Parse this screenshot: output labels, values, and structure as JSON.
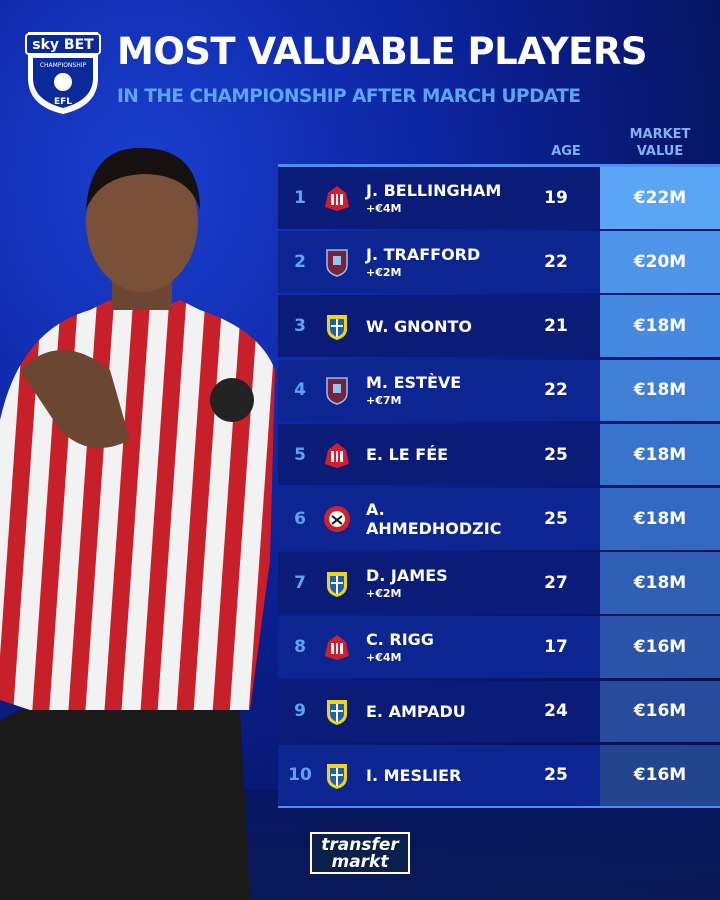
{
  "logo": {
    "line1": "sky BET",
    "line2": "CHAMPIONSHIP",
    "line3": "EFL"
  },
  "title": "MOST VALUABLE PLAYERS",
  "subtitle": "IN THE CHAMPIONSHIP AFTER MARCH UPDATE",
  "headers": {
    "age": "AGE",
    "market_value_1": "MARKET",
    "market_value_2": "VALUE"
  },
  "rows": [
    {
      "rank": "1",
      "club": "sunderland",
      "name": "J. BELLINGHAM",
      "change": "+€4M",
      "age": "19",
      "value": "€22M"
    },
    {
      "rank": "2",
      "club": "burnley",
      "name": "J. TRAFFORD",
      "change": "+€2M",
      "age": "22",
      "value": "€20M"
    },
    {
      "rank": "3",
      "club": "leeds",
      "name": "W. GNONTO",
      "change": "",
      "age": "21",
      "value": "€18M"
    },
    {
      "rank": "4",
      "club": "burnley",
      "name": "M. ESTÈVE",
      "change": "+€7M",
      "age": "22",
      "value": "€18M"
    },
    {
      "rank": "5",
      "club": "sunderland",
      "name": "E. LE FÉE",
      "change": "",
      "age": "25",
      "value": "€18M"
    },
    {
      "rank": "6",
      "club": "sheffield-united",
      "name": "A. AHMEDHODZIC",
      "change": "",
      "age": "25",
      "value": "€18M"
    },
    {
      "rank": "7",
      "club": "leeds",
      "name": "D. JAMES",
      "change": "+€2M",
      "age": "27",
      "value": "€18M"
    },
    {
      "rank": "8",
      "club": "sunderland",
      "name": "C. RIGG",
      "change": "+€4M",
      "age": "17",
      "value": "€16M"
    },
    {
      "rank": "9",
      "club": "leeds",
      "name": "E. AMPADU",
      "change": "",
      "age": "24",
      "value": "€16M"
    },
    {
      "rank": "10",
      "club": "leeds",
      "name": "I. MESLIER",
      "change": "",
      "age": "25",
      "value": "€16M"
    }
  ],
  "value_colors": [
    "#5aa6f5",
    "#4e95ea",
    "#4689e0",
    "#3f7fd6",
    "#3874cb",
    "#3369c0",
    "#2f5fb4",
    "#2b55a8",
    "#284c9c",
    "#254490"
  ],
  "footer_logo": {
    "line1": "transfer",
    "line2": "markt"
  }
}
